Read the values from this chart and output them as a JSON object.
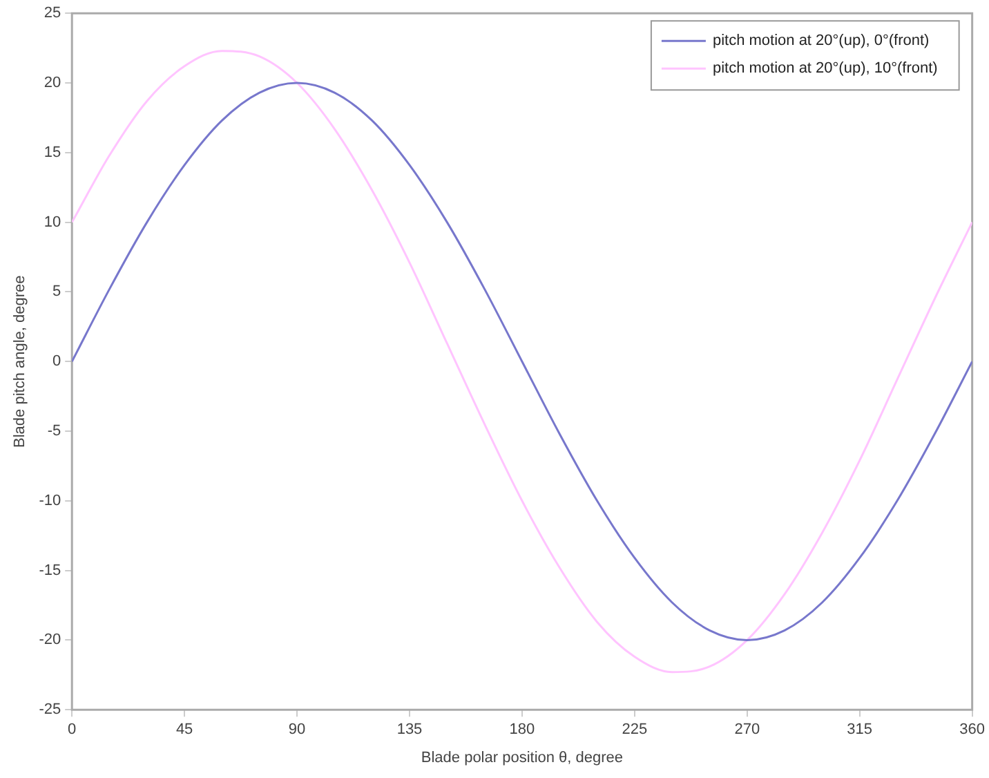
{
  "chart_data": {
    "type": "line",
    "xlabel": "Blade polar position θ, degree",
    "ylabel": "Blade pitch angle, degree",
    "x": [
      0,
      15,
      30,
      45,
      60,
      75,
      90,
      105,
      120,
      135,
      150,
      165,
      180,
      195,
      210,
      225,
      240,
      255,
      270,
      285,
      300,
      315,
      330,
      345,
      360
    ],
    "series": [
      {
        "name": "pitch motion at 20°(up), 0°(front)",
        "color": "#7777cc",
        "values": [
          0,
          5.2,
          10,
          14.1,
          17.3,
          19.3,
          20,
          19.3,
          17.3,
          14.1,
          10,
          5.2,
          0,
          -5.2,
          -10,
          -14.1,
          -17.3,
          -19.3,
          -20,
          -19.3,
          -17.3,
          -14.1,
          -10,
          -5.2,
          0
        ]
      },
      {
        "name": "pitch motion at 20°(up), 10°(front)",
        "color": "#ffc4ff",
        "values": [
          10,
          14.8,
          18.7,
          21.2,
          22.3,
          21.9,
          20,
          16.7,
          12.3,
          7.1,
          1.3,
          -4.5,
          -10,
          -14.8,
          -18.7,
          -21.2,
          -22.3,
          -21.9,
          -20,
          -16.7,
          -12.3,
          -7.1,
          -1.3,
          4.5,
          10
        ]
      }
    ],
    "xlim": [
      0,
      360
    ],
    "xticks": [
      0,
      45,
      90,
      135,
      180,
      225,
      270,
      315,
      360
    ],
    "ylim": [
      -25,
      25
    ],
    "yticks": [
      -25,
      -20,
      -15,
      -10,
      -5,
      0,
      5,
      10,
      15,
      20,
      25
    ],
    "grid": false,
    "legend": "top right",
    "marker": "none",
    "line_style": "solid"
  }
}
